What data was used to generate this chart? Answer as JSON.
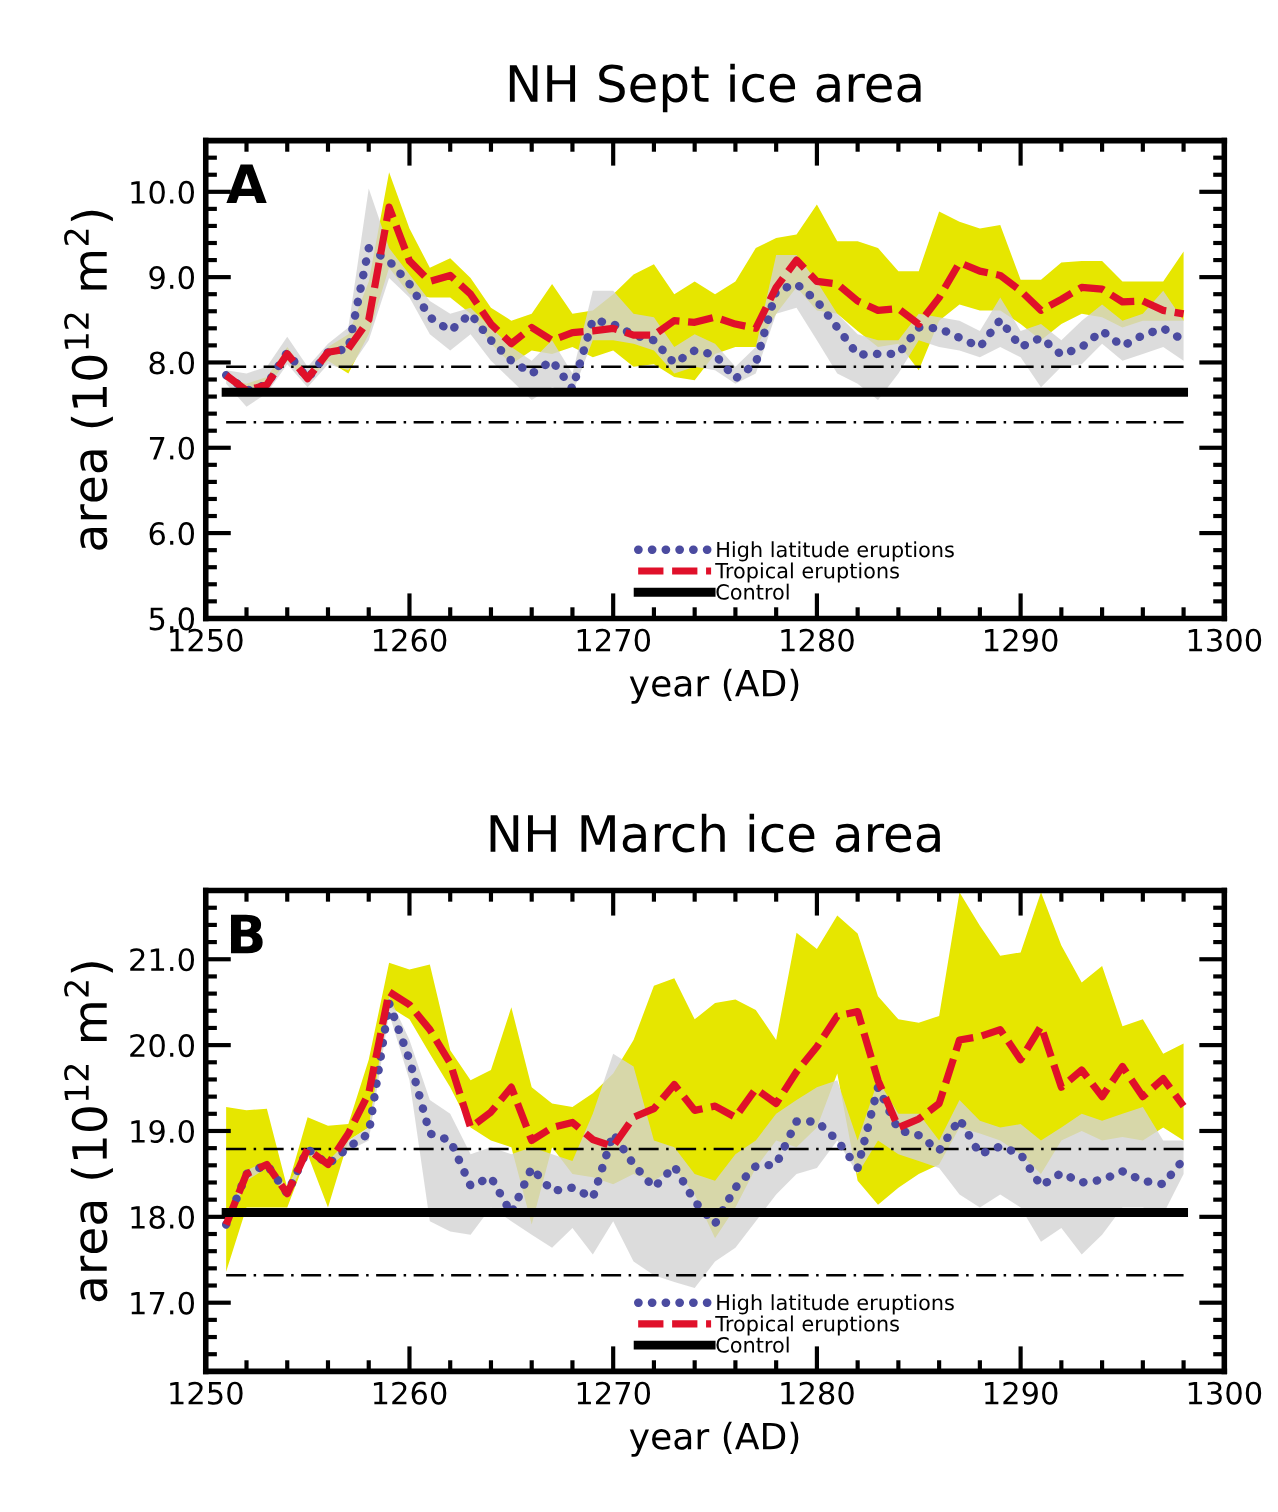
{
  "chart_data": [
    {
      "type": "line",
      "title": "NH Sept ice area",
      "xlabel": "year (AD)",
      "ylabel": "area (10$^{12}$ m$^{2}$)",
      "annotations": [
        "A"
      ],
      "x": [
        1251,
        1252,
        1253,
        1254,
        1255,
        1256,
        1257,
        1258,
        1259,
        1260,
        1261,
        1262,
        1263,
        1264,
        1265,
        1266,
        1267,
        1268,
        1269,
        1270,
        1271,
        1272,
        1273,
        1274,
        1275,
        1276,
        1277,
        1278,
        1279,
        1280,
        1281,
        1282,
        1283,
        1284,
        1285,
        1286,
        1287,
        1288,
        1289,
        1290,
        1291,
        1292,
        1293,
        1294,
        1295,
        1296,
        1297,
        1298
      ],
      "xlim": [
        1250,
        1300
      ],
      "xticks": [
        1250,
        1260,
        1270,
        1280,
        1290,
        1300
      ],
      "ylim": [
        5.0,
        10.6
      ],
      "yticks": [
        {
          "value": 5,
          "label": "5.0"
        },
        {
          "value": 6,
          "label": "6.0"
        },
        {
          "value": 7,
          "label": "7.0"
        },
        {
          "value": 8,
          "label": "8.0"
        },
        {
          "value": 9,
          "label": "9.0"
        },
        {
          "value": 10,
          "label": "10.0"
        }
      ],
      "legend": "bottom",
      "marker": "none",
      "grid": false,
      "ref_lines": [
        {
          "axis": "y",
          "value": 7.95,
          "color": "#000000",
          "line_style": "dashdot"
        },
        {
          "axis": "y",
          "value": 7.3,
          "color": "#000000",
          "line_style": "dashdot"
        }
      ],
      "series": [
        {
          "name": "High latitude eruptions",
          "color": "#4b4ba0",
          "line_style": "dotted",
          "values": [
            7.85,
            7.67,
            7.74,
            8.12,
            7.81,
            8.12,
            8.16,
            9.34,
            9.19,
            8.92,
            8.53,
            8.37,
            8.57,
            8.26,
            8.02,
            7.87,
            8.02,
            7.69,
            8.5,
            8.45,
            8.32,
            8.26,
            7.99,
            8.14,
            8.09,
            7.81,
            7.99,
            8.84,
            8.92,
            8.72,
            8.41,
            8.09,
            8.1,
            8.1,
            8.41,
            8.4,
            8.29,
            8.18,
            8.5,
            8.18,
            8.29,
            8.09,
            8.18,
            8.37,
            8.19,
            8.32,
            8.4,
            8.26
          ],
          "lower": [
            7.75,
            7.48,
            7.64,
            7.98,
            7.71,
            7.98,
            7.91,
            8.26,
            8.99,
            8.76,
            8.33,
            8.14,
            8.33,
            8.02,
            7.79,
            7.56,
            7.71,
            7.64,
            8.26,
            8.26,
            8.22,
            8.14,
            7.87,
            7.95,
            7.91,
            7.75,
            7.87,
            8.57,
            8.64,
            8.26,
            7.87,
            7.75,
            7.56,
            7.87,
            8.26,
            8.18,
            8.14,
            8.06,
            8.18,
            8.06,
            7.71,
            7.95,
            7.98,
            8.22,
            8.02,
            8.1,
            8.18,
            8.02
          ],
          "upper": [
            7.91,
            7.87,
            7.95,
            8.3,
            7.95,
            8.22,
            8.41,
            10.04,
            9.34,
            9.03,
            8.72,
            8.57,
            8.64,
            8.41,
            8.18,
            8.02,
            8.26,
            7.87,
            8.84,
            8.84,
            8.57,
            8.53,
            8.18,
            8.33,
            8.22,
            7.95,
            8.18,
            9.26,
            9.26,
            8.95,
            8.57,
            8.33,
            8.26,
            8.26,
            8.57,
            8.53,
            8.49,
            8.37,
            8.76,
            8.37,
            8.45,
            8.26,
            8.49,
            8.68,
            8.49,
            8.57,
            8.84,
            8.49
          ]
        },
        {
          "name": "Tropical eruptions",
          "color": "#e0102a",
          "line_style": "dashed",
          "values": [
            7.85,
            7.67,
            7.74,
            8.1,
            7.81,
            8.12,
            8.16,
            8.5,
            9.82,
            9.19,
            8.95,
            9.02,
            8.8,
            8.45,
            8.22,
            8.41,
            8.26,
            8.35,
            8.37,
            8.4,
            8.32,
            8.32,
            8.49,
            8.47,
            8.53,
            8.45,
            8.4,
            8.88,
            9.2,
            8.95,
            8.92,
            8.72,
            8.61,
            8.63,
            8.45,
            8.76,
            9.17,
            9.07,
            9.02,
            8.84,
            8.61,
            8.74,
            8.88,
            8.86,
            8.71,
            8.72,
            8.61,
            8.57
          ],
          "lower": [
            7.79,
            7.64,
            7.71,
            8.02,
            7.78,
            8.02,
            7.87,
            8.33,
            9.11,
            8.8,
            8.76,
            8.76,
            8.57,
            8.22,
            7.98,
            8.14,
            8.1,
            8.18,
            8.06,
            8.14,
            7.95,
            7.98,
            7.83,
            7.79,
            8.1,
            8.18,
            8.18,
            8.57,
            8.88,
            8.61,
            8.57,
            8.37,
            8.18,
            8.22,
            7.91,
            8.49,
            8.68,
            8.61,
            8.61,
            8.45,
            8.26,
            8.45,
            8.57,
            8.53,
            8.41,
            8.49,
            8.49,
            8.49
          ],
          "upper": [
            7.83,
            7.75,
            7.83,
            8.18,
            7.87,
            8.18,
            8.33,
            8.95,
            10.23,
            9.57,
            9.11,
            9.22,
            8.99,
            8.64,
            8.49,
            8.57,
            8.92,
            8.57,
            8.61,
            8.8,
            9.03,
            9.15,
            8.8,
            8.95,
            8.8,
            8.95,
            9.34,
            9.46,
            9.5,
            9.85,
            9.42,
            9.42,
            9.34,
            9.07,
            9.07,
            9.77,
            9.65,
            9.57,
            9.61,
            8.97,
            8.97,
            9.17,
            9.19,
            9.19,
            8.95,
            8.95,
            8.95,
            9.3
          ]
        },
        {
          "name": "Control",
          "color": "#000000",
          "line_style": "solid",
          "values": [
            7.65,
            7.65,
            7.65,
            7.65,
            7.65,
            7.65,
            7.65,
            7.65,
            7.65,
            7.65,
            7.65,
            7.65,
            7.65,
            7.65,
            7.65,
            7.65,
            7.65,
            7.65,
            7.65,
            7.65,
            7.65,
            7.65,
            7.65,
            7.65,
            7.65,
            7.65,
            7.65,
            7.65,
            7.65,
            7.65,
            7.65,
            7.65,
            7.65,
            7.65,
            7.65,
            7.65,
            7.65,
            7.65,
            7.65,
            7.65,
            7.65,
            7.65,
            7.65,
            7.65,
            7.65,
            7.65,
            7.65,
            7.65
          ]
        }
      ]
    },
    {
      "type": "line",
      "title": "NH March ice area",
      "xlabel": "year (AD)",
      "ylabel": "area (10$^{12}$ m$^{2}$)",
      "annotations": [
        "B"
      ],
      "x": [
        1251,
        1252,
        1253,
        1254,
        1255,
        1256,
        1257,
        1258,
        1259,
        1260,
        1261,
        1262,
        1263,
        1264,
        1265,
        1266,
        1267,
        1268,
        1269,
        1270,
        1271,
        1272,
        1273,
        1274,
        1275,
        1276,
        1277,
        1278,
        1279,
        1280,
        1281,
        1282,
        1283,
        1284,
        1285,
        1286,
        1287,
        1288,
        1289,
        1290,
        1291,
        1292,
        1293,
        1294,
        1295,
        1296,
        1297,
        1298
      ],
      "xlim": [
        1250,
        1300
      ],
      "xticks": [
        1250,
        1260,
        1270,
        1280,
        1290,
        1300
      ],
      "ylim": [
        16.2,
        21.8
      ],
      "yticks": [
        {
          "value": 17,
          "label": "17.0"
        },
        {
          "value": 18,
          "label": "18.0"
        },
        {
          "value": 19,
          "label": "19.0"
        },
        {
          "value": 20,
          "label": "20.0"
        },
        {
          "value": 21,
          "label": "21.0"
        }
      ],
      "legend": "bottom",
      "marker": "none",
      "grid": false,
      "ref_lines": [
        {
          "axis": "y",
          "value": 18.79,
          "color": "#000000",
          "line_style": "dashdot"
        },
        {
          "axis": "y",
          "value": 17.32,
          "color": "#000000",
          "line_style": "dashdot"
        }
      ],
      "series": [
        {
          "name": "High latitude eruptions",
          "color": "#4b4ba0",
          "line_style": "dotted",
          "values": [
            17.91,
            18.5,
            18.61,
            18.27,
            18.79,
            18.61,
            18.81,
            18.97,
            20.49,
            19.83,
            18.97,
            18.89,
            18.36,
            18.46,
            18.04,
            18.57,
            18.3,
            18.34,
            18.22,
            18.97,
            18.61,
            18.34,
            18.59,
            18.18,
            17.92,
            18.34,
            18.59,
            18.61,
            19.11,
            19.11,
            18.89,
            18.57,
            19.51,
            19.01,
            18.95,
            18.77,
            19.14,
            18.73,
            18.82,
            18.73,
            18.36,
            18.51,
            18.4,
            18.43,
            18.53,
            18.42,
            18.38,
            18.67
          ],
          "lower": [
            17.87,
            18.42,
            18.57,
            18.22,
            18.73,
            18.57,
            18.77,
            18.89,
            20.37,
            19.59,
            17.95,
            17.83,
            17.79,
            18.11,
            17.95,
            17.79,
            17.64,
            17.87,
            17.56,
            17.95,
            17.48,
            17.32,
            17.24,
            17.17,
            17.48,
            17.64,
            17.95,
            18.26,
            18.5,
            18.57,
            18.89,
            18.5,
            18.89,
            18.73,
            18.65,
            18.57,
            18.26,
            18.11,
            18.26,
            18.11,
            17.71,
            17.87,
            17.56,
            17.79,
            18.11,
            18.11,
            18.03,
            18.5
          ],
          "upper": [
            17.95,
            18.54,
            18.65,
            18.34,
            18.82,
            18.65,
            18.89,
            19.04,
            20.57,
            20.06,
            19.36,
            19.2,
            18.73,
            18.81,
            18.73,
            18.81,
            18.73,
            18.65,
            19.2,
            19.9,
            19.75,
            18.89,
            18.81,
            18.5,
            18.42,
            18.73,
            18.89,
            19.2,
            19.36,
            19.51,
            19.59,
            18.89,
            19.59,
            19.2,
            19.2,
            18.89,
            19.36,
            19.12,
            19.04,
            19.08,
            18.89,
            19.04,
            19.2,
            19.12,
            19.2,
            19.28,
            18.89,
            18.89
          ]
        },
        {
          "name": "Tropical eruptions",
          "color": "#e0102a",
          "line_style": "dashed",
          "values": [
            17.91,
            18.5,
            18.61,
            18.27,
            18.79,
            18.61,
            18.97,
            19.44,
            20.62,
            20.47,
            20.18,
            19.79,
            19.04,
            19.22,
            19.51,
            18.89,
            19.04,
            19.1,
            18.9,
            18.82,
            19.16,
            19.26,
            19.54,
            19.24,
            19.29,
            19.16,
            19.49,
            19.32,
            19.69,
            19.98,
            20.34,
            20.39,
            19.59,
            19.04,
            19.14,
            19.32,
            20.06,
            20.1,
            20.18,
            19.83,
            20.22,
            19.51,
            19.71,
            19.4,
            19.75,
            19.4,
            19.61,
            19.29
          ],
          "lower": [
            17.36,
            18.11,
            18.11,
            18.11,
            18.73,
            18.11,
            18.89,
            19.04,
            20.45,
            20.3,
            19.9,
            19.51,
            19.04,
            18.89,
            18.81,
            17.91,
            18.81,
            18.5,
            18.46,
            18.38,
            18.5,
            18.42,
            18.57,
            18.26,
            17.75,
            18.11,
            18.57,
            18.89,
            18.81,
            19.04,
            19.67,
            18.42,
            18.14,
            18.34,
            18.5,
            18.61,
            19.04,
            18.97,
            18.89,
            18.73,
            18.5,
            18.89,
            19.0,
            18.89,
            18.93,
            18.89,
            19.04,
            18.89
          ],
          "upper": [
            19.28,
            19.24,
            19.26,
            18.34,
            19.16,
            19.06,
            19.08,
            19.83,
            20.96,
            20.88,
            20.94,
            19.94,
            19.59,
            19.71,
            20.44,
            19.51,
            19.32,
            19.28,
            19.44,
            19.67,
            20.06,
            20.69,
            20.78,
            20.3,
            20.49,
            20.53,
            20.41,
            20.06,
            21.31,
            21.12,
            21.51,
            21.3,
            20.57,
            20.3,
            20.26,
            20.34,
            21.78,
            21.39,
            21.04,
            21.08,
            21.78,
            21.16,
            20.73,
            20.92,
            20.22,
            20.3,
            19.9,
            20.02
          ]
        },
        {
          "name": "Control",
          "color": "#000000",
          "line_style": "solid",
          "values": [
            18.05,
            18.05,
            18.05,
            18.05,
            18.05,
            18.05,
            18.05,
            18.05,
            18.05,
            18.05,
            18.05,
            18.05,
            18.05,
            18.05,
            18.05,
            18.05,
            18.05,
            18.05,
            18.05,
            18.05,
            18.05,
            18.05,
            18.05,
            18.05,
            18.05,
            18.05,
            18.05,
            18.05,
            18.05,
            18.05,
            18.05,
            18.05,
            18.05,
            18.05,
            18.05,
            18.05,
            18.05,
            18.05,
            18.05,
            18.05,
            18.05,
            18.05,
            18.05,
            18.05,
            18.05,
            18.05,
            18.05,
            18.05
          ]
        }
      ]
    }
  ]
}
